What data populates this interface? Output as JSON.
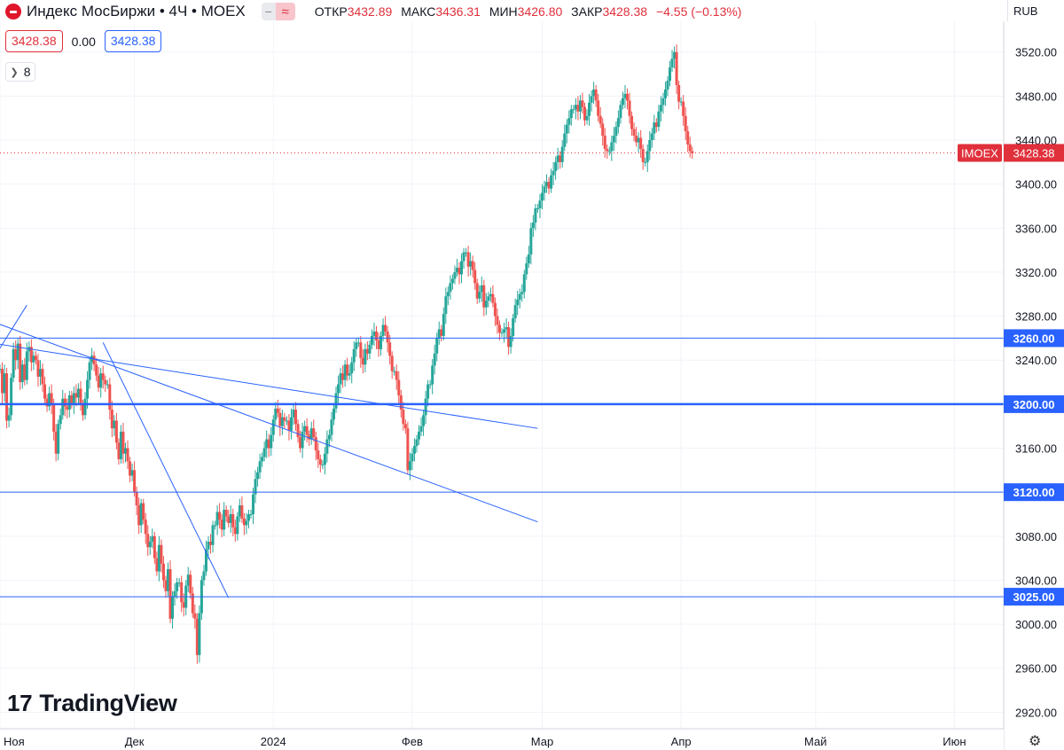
{
  "header": {
    "title": "Индекс МосБиржи • 4Ч • MOEX",
    "ohlc": [
      {
        "label": "ОТКР",
        "value": "3432.89"
      },
      {
        "label": "МАКС",
        "value": "3436.31"
      },
      {
        "label": "МИН",
        "value": "3426.80"
      },
      {
        "label": "ЗАКР",
        "value": "3428.38"
      }
    ],
    "change": "−4.55 (−0.13%)",
    "sell_price": "3428.38",
    "spread": "0.00",
    "buy_price": "3428.38",
    "indicators_count": "8",
    "currency": "RUB"
  },
  "brand": "TradingView",
  "colors": {
    "up": "#26a69a",
    "down": "#ef5350",
    "lines": "#2962ff",
    "price_tag": "#e0303b"
  },
  "chart_data": {
    "type": "candlestick",
    "symbol": "IMOEX",
    "last_price": 3428.38,
    "ylim": [
      2905,
      3548
    ],
    "y_ticks": [
      2920,
      2960,
      3000,
      3040,
      3080,
      3120,
      3160,
      3200,
      3240,
      3280,
      3320,
      3360,
      3400,
      3440,
      3480,
      3520
    ],
    "x_ticks": [
      {
        "label": "Ноя",
        "date": "2023-11-01"
      },
      {
        "label": "Дек",
        "date": "2023-12-01"
      },
      {
        "label": "2024",
        "date": "2024-01-01"
      },
      {
        "label": "Фев",
        "date": "2024-02-01"
      },
      {
        "label": "Мар",
        "date": "2024-03-01"
      },
      {
        "label": "Апр",
        "date": "2024-04-01"
      },
      {
        "label": "Май",
        "date": "2024-05-01"
      },
      {
        "label": "Июн",
        "date": "2024-06-01"
      }
    ],
    "xlim": [
      "2023-11-01",
      "2024-06-12"
    ],
    "horizontal_levels": [
      3260.0,
      3200.0,
      3120.0,
      3025.0
    ],
    "trend_lines": [
      {
        "from": {
          "date": "2023-10-30",
          "price": 3238
        },
        "to": {
          "date": "2023-11-07",
          "price": 3290
        }
      },
      {
        "from": {
          "date": "2023-10-31",
          "price": 3255
        },
        "to": {
          "date": "2024-02-29",
          "price": 3178
        }
      },
      {
        "from": {
          "date": "2023-10-31",
          "price": 3274
        },
        "to": {
          "date": "2024-02-29",
          "price": 3093
        }
      },
      {
        "from": {
          "date": "2023-11-24",
          "price": 3256
        },
        "to": {
          "date": "2023-12-22",
          "price": 3024
        }
      }
    ],
    "series": [
      {
        "date": "2023-11-01",
        "values": [
          3232,
          3210,
          3228,
          3185,
          3190,
          3224,
          3250,
          3240,
          3255,
          3220,
          3236,
          3222,
          3248,
          3252,
          3238,
          3244
        ]
      },
      {
        "date": "2023-11-09",
        "values": [
          3240,
          3225,
          3232,
          3218,
          3205,
          3198,
          3210,
          3200,
          3175,
          3155,
          3182,
          3190,
          3205,
          3198,
          3195,
          3208
        ]
      },
      {
        "date": "2023-11-17",
        "values": [
          3200,
          3210,
          3206,
          3214,
          3200,
          3190,
          3205,
          3222,
          3238,
          3244,
          3236,
          3226,
          3215,
          3228,
          3222,
          3218
        ]
      },
      {
        "date": "2023-11-25",
        "values": [
          3218,
          3195,
          3178,
          3185,
          3165,
          3150,
          3175,
          3155,
          3160,
          3148,
          3135,
          3140,
          3120,
          3108,
          3090,
          3110
        ]
      },
      {
        "date": "2023-12-03",
        "values": [
          3095,
          3082,
          3070,
          3075,
          3080,
          3060,
          3048,
          3072,
          3055,
          3040,
          3030,
          3050,
          3005,
          3025,
          3030,
          3038
        ]
      },
      {
        "date": "2023-12-11",
        "values": [
          3038,
          3020,
          3015,
          3035,
          3045,
          3028,
          3010,
          3005,
          2972,
          3010,
          3040,
          3048,
          3068,
          3075,
          3072,
          3090
        ]
      },
      {
        "date": "2023-12-19",
        "values": [
          3090,
          3102,
          3095,
          3086,
          3104,
          3098,
          3092,
          3100,
          3088,
          3082,
          3098,
          3108,
          3096,
          3090,
          3094,
          3100
        ]
      },
      {
        "date": "2023-12-27",
        "values": [
          3100,
          3118,
          3132,
          3138,
          3148,
          3152,
          3160,
          3168,
          3160,
          3172,
          3186,
          3196,
          3192,
          3180,
          3188,
          3185
        ]
      },
      {
        "date": "2024-01-04",
        "values": [
          3185,
          3176,
          3188,
          3195,
          3182,
          3170,
          3160,
          3175,
          3180,
          3172,
          3168,
          3178,
          3170,
          3158,
          3150,
          3145
        ]
      },
      {
        "date": "2024-01-12",
        "values": [
          3145,
          3155,
          3168,
          3172,
          3186,
          3196,
          3210,
          3218,
          3228,
          3222,
          3236,
          3226,
          3228,
          3238,
          3250,
          3256
        ]
      },
      {
        "date": "2024-01-20",
        "values": [
          3256,
          3242,
          3236,
          3250,
          3246,
          3254,
          3262,
          3266,
          3258,
          3250,
          3262,
          3272,
          3266,
          3256,
          3244,
          3230
        ]
      },
      {
        "date": "2024-01-28",
        "values": [
          3230,
          3222,
          3208,
          3195,
          3182,
          3178,
          3140,
          3148,
          3155,
          3162,
          3168,
          3175,
          3180,
          3190,
          3205,
          3218
        ]
      },
      {
        "date": "2024-02-05",
        "values": [
          3218,
          3235,
          3246,
          3260,
          3268,
          3262,
          3282,
          3298,
          3302,
          3310,
          3314,
          3320,
          3324,
          3318,
          3330,
          3338
        ]
      },
      {
        "date": "2024-02-13",
        "values": [
          3338,
          3325,
          3330,
          3322,
          3310,
          3296,
          3302,
          3308,
          3288,
          3294,
          3298,
          3300,
          3292,
          3280,
          3272,
          3265
        ]
      },
      {
        "date": "2024-02-21",
        "values": [
          3265,
          3268,
          3270,
          3252,
          3262,
          3278,
          3290,
          3295,
          3300,
          3302,
          3318,
          3328,
          3336,
          3360,
          3365,
          3378
        ]
      },
      {
        "date": "2024-02-29",
        "values": [
          3378,
          3385,
          3392,
          3398,
          3402,
          3396,
          3408,
          3412,
          3420,
          3426,
          3420,
          3434,
          3446,
          3454,
          3460,
          3468
        ]
      },
      {
        "date": "2024-03-08",
        "values": [
          3468,
          3472,
          3466,
          3476,
          3470,
          3458,
          3462,
          3474,
          3480,
          3486,
          3476,
          3462,
          3455,
          3444,
          3432,
          3430
        ]
      },
      {
        "date": "2024-03-16",
        "values": [
          3430,
          3438,
          3444,
          3452,
          3460,
          3472,
          3478,
          3482,
          3476,
          3462,
          3450,
          3444,
          3438,
          3442,
          3432,
          3420
        ]
      },
      {
        "date": "2024-03-24",
        "values": [
          3420,
          3430,
          3440,
          3446,
          3456,
          3452,
          3466,
          3472,
          3478,
          3486,
          3494,
          3506,
          3514,
          3520,
          3490,
          3475
        ]
      },
      {
        "date": "2024-04-01",
        "values": [
          3475,
          3462,
          3448,
          3436,
          3430,
          3428
        ]
      }
    ]
  }
}
